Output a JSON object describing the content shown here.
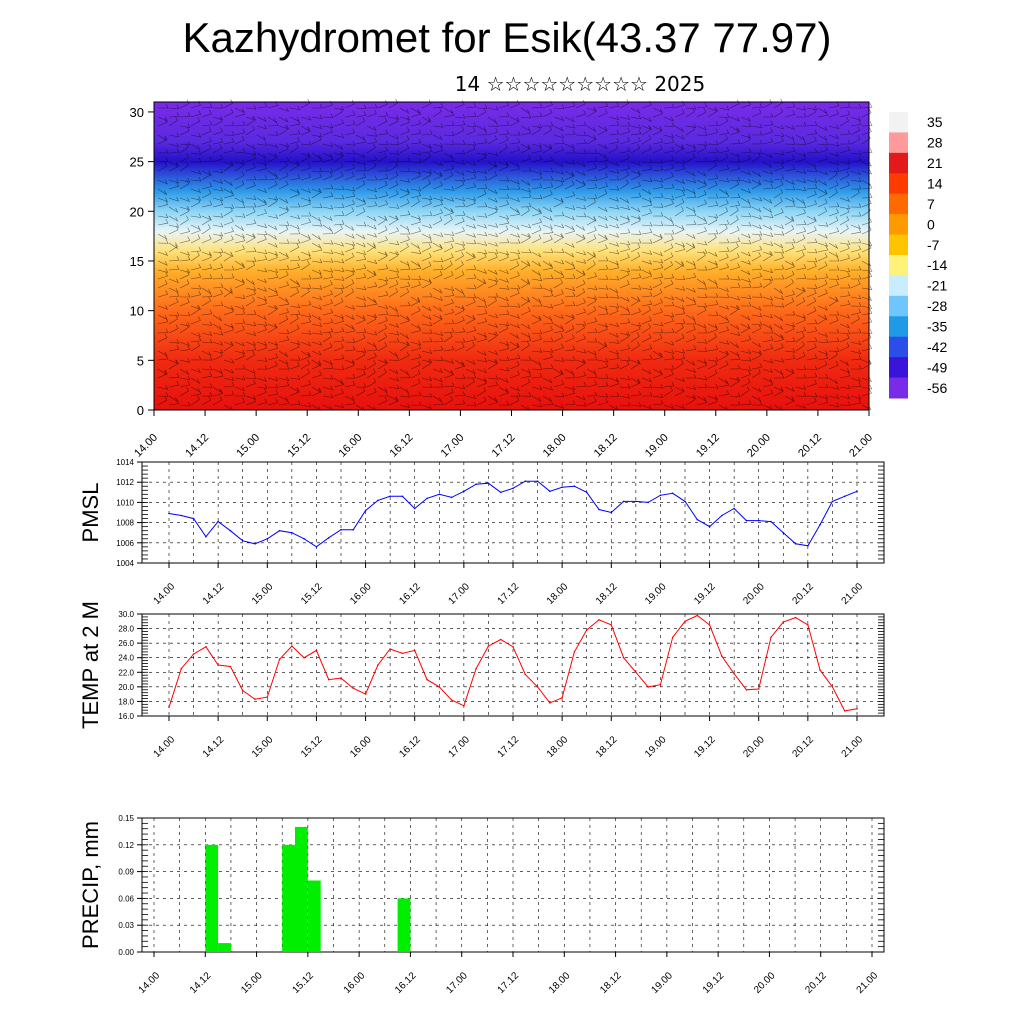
{
  "title": "Kazhydromet for Esik(43.37 77.97)",
  "subtitle": "14 ☆☆☆☆☆☆☆☆☆ 2025",
  "time_labels": [
    "14.00",
    "14.12",
    "15.00",
    "15.12",
    "16.00",
    "16.12",
    "17.00",
    "17.12",
    "18.00",
    "18.12",
    "19.00",
    "19.12",
    "20.00",
    "20.12",
    "21.00"
  ],
  "chart_data": [
    {
      "type": "heatmap",
      "name": "cross-section",
      "ylim": [
        0,
        31
      ],
      "y_ticks": [
        0,
        5,
        10,
        15,
        20,
        25,
        30
      ],
      "colorbar": {
        "labels": [
          "35",
          "28",
          "21",
          "14",
          "7",
          "0",
          "-7",
          "-14",
          "-21",
          "-28",
          "-35",
          "-42",
          "-49",
          "-56"
        ],
        "colors": [
          "#f2f2f2",
          "#ff9a9a",
          "#e31a1c",
          "#ff3b00",
          "#ff6a00",
          "#ff9900",
          "#ffc400",
          "#fff27a",
          "#c9ecff",
          "#6fc6ff",
          "#1f9be6",
          "#2c4ee8",
          "#3a14d9",
          "#7a2be8"
        ]
      },
      "profile_levels": [
        0,
        5,
        10,
        14,
        16,
        18,
        20,
        22,
        24,
        25,
        27,
        31
      ],
      "profile_colors": [
        "#e8100e",
        "#f02a10",
        "#ff6a1a",
        "#ffb02a",
        "#ffe27a",
        "#e8f4f6",
        "#8ed6f5",
        "#2e9ae8",
        "#2a3fd6",
        "#2410c8",
        "#5a2ae0",
        "#7a2ae8"
      ],
      "annotation": "wind barbs"
    },
    {
      "type": "line",
      "ylabel": "PMSL",
      "ylim": [
        1004,
        1014
      ],
      "y_ticks": [
        "1004",
        "1006",
        "1008",
        "1010",
        "1012",
        "1014"
      ],
      "color": "#0000ff",
      "x": [
        0,
        3,
        6,
        9,
        12,
        15,
        18,
        21,
        24,
        27,
        30,
        33,
        36,
        39,
        42,
        45,
        48,
        51,
        54,
        57,
        60,
        63,
        66,
        69,
        72,
        75,
        78,
        81,
        84,
        87,
        90,
        93,
        96,
        99,
        102,
        105,
        108,
        111,
        114,
        117,
        120,
        123,
        126,
        129,
        132,
        135,
        138,
        141,
        144,
        147,
        150,
        153,
        156,
        159,
        162,
        165,
        168
      ],
      "values": [
        1008.9,
        1008.7,
        1008.4,
        1006.6,
        1008.1,
        1007.2,
        1006.2,
        1005.9,
        1006.4,
        1007.2,
        1007.0,
        1006.4,
        1005.6,
        1006.5,
        1007.3,
        1007.3,
        1009.2,
        1010.2,
        1010.6,
        1010.6,
        1009.4,
        1010.4,
        1010.8,
        1010.5,
        1011.1,
        1011.8,
        1011.9,
        1011.0,
        1011.4,
        1012.1,
        1012.1,
        1011.1,
        1011.5,
        1011.6,
        1011.0,
        1009.3,
        1009.0,
        1010.1,
        1010.1,
        1010.0,
        1010.7,
        1010.9,
        1010.1,
        1008.3,
        1007.6,
        1008.7,
        1009.4,
        1008.2,
        1008.2,
        1008.1,
        1007.0,
        1005.9,
        1005.7,
        1007.8,
        1010.1,
        1010.6,
        1011.1
      ]
    },
    {
      "type": "line",
      "ylabel": "TEMP at 2 M",
      "ylim": [
        16,
        30
      ],
      "y_ticks": [
        "16.0",
        "18.0",
        "20.0",
        "22.0",
        "24.0",
        "26.0",
        "28.0",
        "30.0"
      ],
      "color": "#ff0000",
      "x": [
        0,
        3,
        6,
        9,
        12,
        15,
        18,
        21,
        24,
        27,
        30,
        33,
        36,
        39,
        42,
        45,
        48,
        51,
        54,
        57,
        60,
        63,
        66,
        69,
        72,
        75,
        78,
        81,
        84,
        87,
        90,
        93,
        96,
        99,
        102,
        105,
        108,
        111,
        114,
        117,
        120,
        123,
        126,
        129,
        132,
        135,
        138,
        141,
        144,
        147,
        150,
        153,
        156,
        159,
        162,
        165,
        168
      ],
      "values": [
        17.2,
        22.5,
        24.5,
        25.5,
        23.0,
        22.8,
        19.5,
        18.3,
        18.6,
        23.8,
        25.6,
        24.0,
        25.0,
        21.0,
        21.2,
        19.8,
        19.0,
        23.0,
        25.2,
        24.6,
        25.0,
        21.0,
        20.0,
        18.2,
        17.4,
        22.5,
        25.6,
        26.5,
        25.5,
        21.7,
        20.0,
        17.8,
        18.5,
        24.8,
        27.8,
        29.2,
        28.5,
        24.0,
        22.0,
        20.0,
        20.3,
        26.8,
        29.0,
        29.8,
        28.5,
        24.2,
        21.8,
        19.6,
        19.7,
        26.8,
        28.9,
        29.5,
        28.5,
        22.3,
        20.0,
        16.7,
        17.0
      ]
    },
    {
      "type": "bar",
      "ylabel": "PRECIP, mm",
      "ylim": [
        0,
        0.15
      ],
      "y_ticks": [
        "0.00",
        "0.03",
        "0.06",
        "0.09",
        "0.12",
        "0.15"
      ],
      "color": "#00ee00",
      "x_start": [
        12,
        15,
        30,
        33,
        36,
        57
      ],
      "values": [
        0.12,
        0.01,
        0.12,
        0.14,
        0.08,
        0.06
      ]
    }
  ]
}
